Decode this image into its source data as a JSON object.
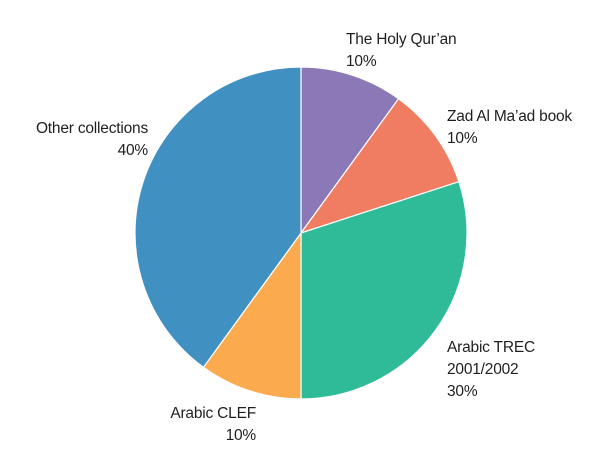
{
  "chart_data": {
    "type": "pie",
    "slices": [
      {
        "label": "The Holy Qur’an",
        "value": 10,
        "value_text": "10%",
        "color": "#8b78b6"
      },
      {
        "label": "Zad Al Ma’ad book",
        "value": 10,
        "value_text": "10%",
        "color": "#f07c61"
      },
      {
        "label": "Arabic TREC 2001/2002",
        "value": 30,
        "value_text": "30%",
        "color": "#2fbb98"
      },
      {
        "label": "Arabic CLEF",
        "value": 10,
        "value_text": "10%",
        "color": "#fbab4d"
      },
      {
        "label": "Other collections",
        "value": 40,
        "value_text": "40%",
        "color": "#4090c2"
      }
    ],
    "start_angle_deg": 0,
    "direction": "clockwise"
  }
}
